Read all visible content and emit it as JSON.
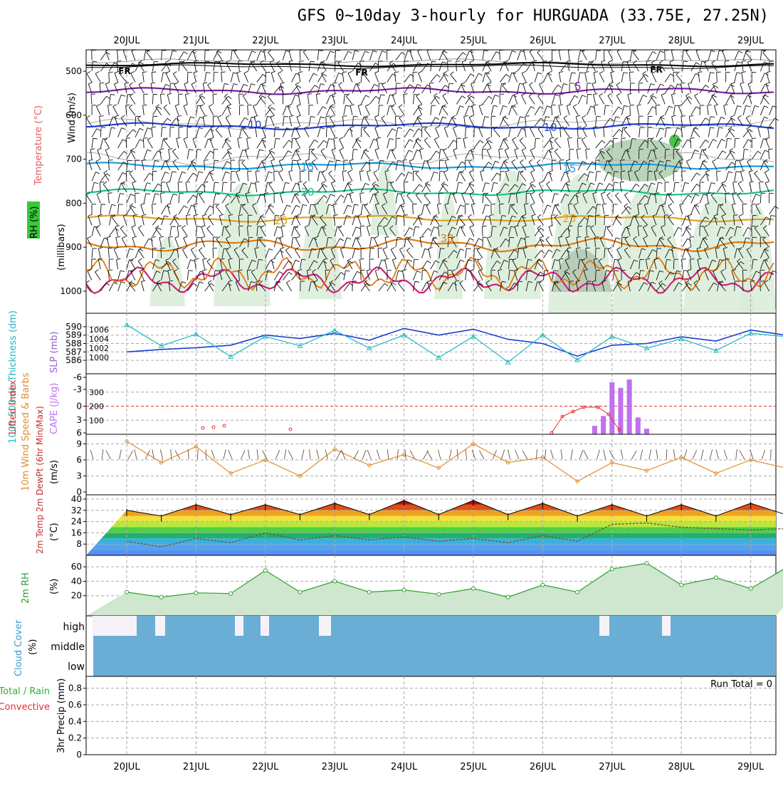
{
  "title": "GFS 0~10day 3-hourly for HURGUADA (33.75E, 27.25N)",
  "x_axis": {
    "ticks": [
      "20JUL",
      "21JUL",
      "22JUL",
      "23JUL",
      "24JUL",
      "25JUL",
      "26JUL",
      "27JUL",
      "28JUL",
      "29JUL"
    ]
  },
  "panels": {
    "upper_air": {
      "ylabel_segments": [
        {
          "text": "RH (%)",
          "color": "#00cc00"
        },
        {
          "text": "Temperature (°C)",
          "color": "#e06060"
        },
        {
          "text": "Wind (m/s)",
          "color": "#000000"
        }
      ],
      "ylabel_units": "(millibars)",
      "yticks": [
        "500",
        "600",
        "700",
        "800",
        "900",
        "1000"
      ],
      "contour_labels": [
        "FR",
        "5",
        "10",
        "15",
        "20",
        "25",
        "30"
      ]
    },
    "thickness_slp": {
      "ylabel_left": "1000-500mb Thickness (dm)",
      "ylabel_right": "SLP (mb)",
      "yticks_left": [
        "586",
        "587",
        "588",
        "589",
        "590"
      ],
      "yticks_right": [
        "1000",
        "1002",
        "1004",
        "1006"
      ]
    },
    "cape_li": {
      "ylabel_left": "Lifted Index",
      "ylabel_right": "CAPE (J/kg)",
      "yticks_left": [
        "-6",
        "-3",
        "0",
        "3",
        "6"
      ],
      "yticks_right": [
        "100",
        "200",
        "300"
      ]
    },
    "wind10m": {
      "ylabel": "10m Wind Speed & Barbs",
      "units": "(m/s)",
      "yticks": [
        "0",
        "3",
        "6",
        "9"
      ]
    },
    "temp2m": {
      "ylabel": "2m Temp 2m DewPt (6hr Min/Max)",
      "units": "(°C)",
      "yticks": [
        "8",
        "16",
        "24",
        "32",
        "40"
      ]
    },
    "rh2m": {
      "ylabel": "2m RH",
      "units": "(%)",
      "yticks": [
        "20",
        "40",
        "60"
      ]
    },
    "cloud": {
      "ylabel": "Cloud Cover",
      "units": "(%)",
      "levels": [
        "high",
        "middle",
        "low"
      ]
    },
    "precip": {
      "ylabel_left_1": "Total / Rain",
      "ylabel_left_2": "Convective",
      "ylabel": "3hr Precip (mm)",
      "yticks": [
        "0",
        "0.2",
        "0.4",
        "0.6",
        "0.8"
      ],
      "run_total": "Run Total = 0"
    }
  },
  "colors": {
    "rh_fill": "#d8ecd8",
    "temp_5": "#7a1fa2",
    "temp_10": "#1f3fd1",
    "temp_15": "#1a9be0",
    "temp_20": "#19c28a",
    "temp_25": "#e0a020",
    "temp_30": "#e07a10",
    "temp_35": "#d0207a",
    "thickness": "#1a3fd0",
    "slp": "#20b8c0",
    "cape": "#c070f0",
    "lifted_index": "#e03030",
    "wind_speed": "#e09030",
    "rh_line": "#30a030",
    "cloud": "#6aaed6",
    "precip_grid": "#aaaaaa"
  },
  "chart_data": [
    {
      "type": "line",
      "title": "1000-500mb Thickness (dm)",
      "x": [
        "19JUL12",
        "20JUL00",
        "20JUL12",
        "21JUL00",
        "21JUL12",
        "22JUL00",
        "22JUL12",
        "23JUL00",
        "23JUL12",
        "24JUL00",
        "24JUL12",
        "25JUL00",
        "25JUL12",
        "26JUL00",
        "26JUL12",
        "27JUL00",
        "27JUL12",
        "28JUL00",
        "28JUL12",
        "29JUL00",
        "29JUL06"
      ],
      "values": [
        587.0,
        587.3,
        587.5,
        587.8,
        589.0,
        588.6,
        589.2,
        588.4,
        589.8,
        589.0,
        589.7,
        588.5,
        588.0,
        586.5,
        587.8,
        588.0,
        588.8,
        588.3,
        589.6,
        589.0,
        589.4
      ],
      "ylim": [
        585.5,
        590.5
      ]
    },
    {
      "type": "line",
      "title": "SLP (mb)",
      "x": [
        "19JUL12",
        "20JUL00",
        "20JUL12",
        "21JUL00",
        "21JUL12",
        "22JUL00",
        "22JUL12",
        "23JUL00",
        "23JUL12",
        "24JUL00",
        "24JUL12",
        "25JUL00",
        "25JUL12",
        "26JUL00",
        "26JUL12",
        "27JUL00",
        "27JUL12",
        "28JUL00",
        "28JUL12",
        "29JUL00",
        "29JUL06"
      ],
      "values": [
        1007.0,
        1002.5,
        1005.0,
        1000.2,
        1004.5,
        1002.5,
        1005.8,
        1002.0,
        1004.8,
        1000.0,
        1004.5,
        999.0,
        1004.8,
        999.5,
        1004.5,
        1002.0,
        1004.0,
        1001.5,
        1005.2,
        1004.5,
        1002.0
      ],
      "ylim": [
        998.5,
        1007.5
      ]
    },
    {
      "type": "bar",
      "title": "CAPE (J/kg)",
      "x": [
        "26JUL06",
        "26JUL09",
        "26JUL12",
        "26JUL15",
        "26JUL18",
        "26JUL21",
        "27JUL00"
      ],
      "values": [
        60,
        130,
        370,
        330,
        390,
        120,
        40
      ],
      "ylim": [
        0,
        400
      ]
    },
    {
      "type": "line",
      "title": "10m Wind Speed & Barbs",
      "x": [
        "19JUL12",
        "20JUL00",
        "20JUL12",
        "21JUL00",
        "21JUL12",
        "22JUL00",
        "22JUL12",
        "23JUL00",
        "23JUL12",
        "24JUL00",
        "24JUL12",
        "25JUL00",
        "25JUL12",
        "26JUL00",
        "26JUL12",
        "27JUL00",
        "27JUL12",
        "28JUL00",
        "28JUL12",
        "29JUL00",
        "29JUL06"
      ],
      "values": [
        9.5,
        5.5,
        8.5,
        3.5,
        6.0,
        3.0,
        8.0,
        5.0,
        7.0,
        4.5,
        9.0,
        5.5,
        6.5,
        2.0,
        5.5,
        4.0,
        6.5,
        3.5,
        6.0,
        4.5,
        5.5
      ],
      "ylim": [
        0,
        10
      ]
    },
    {
      "type": "area",
      "title": "2m Temp",
      "x": [
        "19JUL12",
        "20JUL00",
        "20JUL12",
        "21JUL00",
        "21JUL12",
        "22JUL00",
        "22JUL12",
        "23JUL00",
        "23JUL12",
        "24JUL00",
        "24JUL12",
        "25JUL00",
        "25JUL12",
        "26JUL00",
        "26JUL12",
        "27JUL00",
        "27JUL12",
        "28JUL00",
        "28JUL12",
        "29JUL00",
        "29JUL06"
      ],
      "values": [
        32,
        28,
        36,
        29,
        36,
        29,
        37,
        29,
        39,
        29,
        39,
        29,
        37,
        28,
        36,
        28,
        36,
        28,
        37,
        29,
        33
      ],
      "ylim": [
        0,
        42
      ]
    },
    {
      "type": "line",
      "title": "2m DewPt",
      "x": [
        "19JUL12",
        "20JUL00",
        "20JUL12",
        "21JUL00",
        "21JUL12",
        "22JUL00",
        "22JUL12",
        "23JUL00",
        "23JUL12",
        "24JUL00",
        "24JUL12",
        "25JUL00",
        "25JUL12",
        "26JUL00",
        "26JUL12",
        "27JUL00",
        "27JUL12",
        "28JUL00",
        "28JUL12",
        "29JUL00",
        "29JUL06"
      ],
      "values": [
        10,
        6,
        12,
        9,
        16,
        11,
        14,
        11,
        13,
        10,
        12,
        9,
        14,
        10,
        22,
        23,
        20,
        19,
        18,
        19,
        17
      ],
      "ylim": [
        0,
        42
      ]
    },
    {
      "type": "area",
      "title": "2m RH",
      "x": [
        "19JUL12",
        "20JUL00",
        "20JUL12",
        "21JUL00",
        "21JUL12",
        "22JUL00",
        "22JUL12",
        "23JUL00",
        "23JUL12",
        "24JUL00",
        "24JUL12",
        "25JUL00",
        "25JUL12",
        "26JUL00",
        "26JUL12",
        "27JUL00",
        "27JUL12",
        "28JUL00",
        "28JUL12",
        "29JUL00",
        "29JUL06"
      ],
      "values": [
        25,
        18,
        24,
        23,
        55,
        25,
        40,
        25,
        28,
        22,
        30,
        18,
        35,
        25,
        57,
        65,
        35,
        45,
        30,
        58,
        35
      ],
      "ylim": [
        0,
        70
      ]
    },
    {
      "type": "bar",
      "title": "3hr Precip (mm)",
      "x": [
        "19JUL12",
        "29JUL06"
      ],
      "values": [
        0,
        0
      ],
      "ylim": [
        0,
        0.9
      ]
    }
  ]
}
